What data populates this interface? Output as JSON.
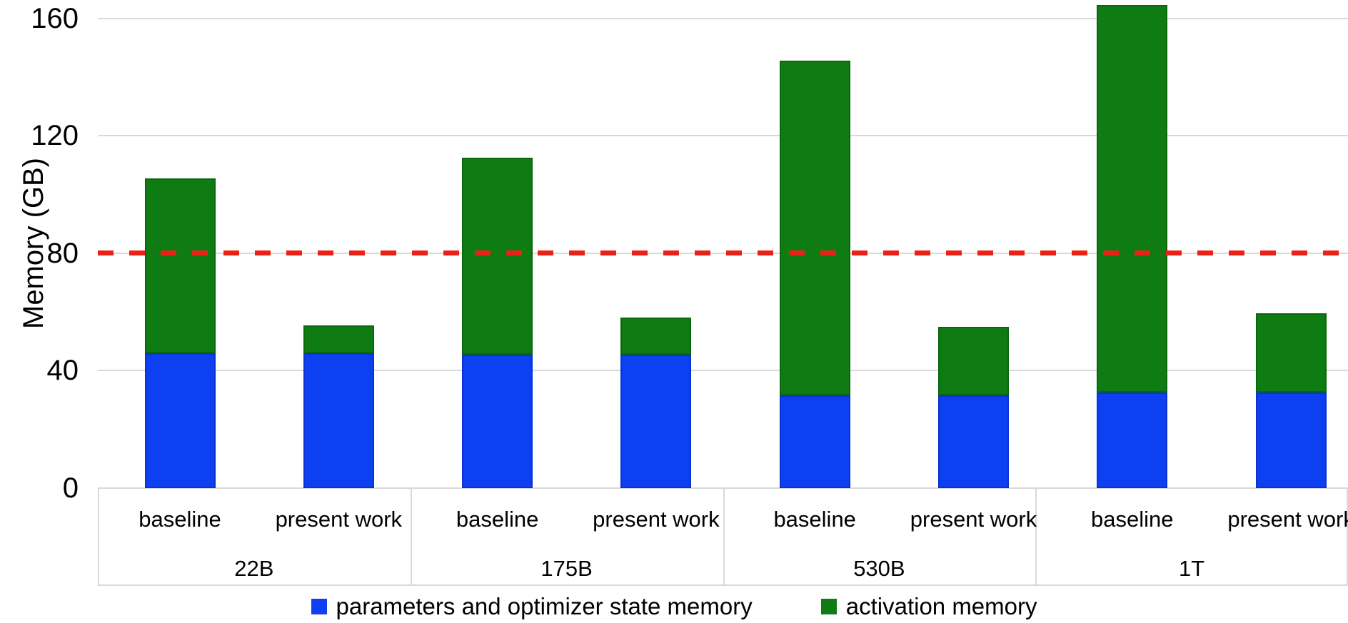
{
  "chart_data": {
    "type": "bar",
    "stacked": true,
    "ylabel": "Memory (GB)",
    "xlabel": "",
    "y_ticks": [
      0,
      40,
      80,
      120,
      160
    ],
    "ylim": [
      0,
      166
    ],
    "grid": true,
    "legend_position": "bottom",
    "groups": [
      "22B",
      "175B",
      "530B",
      "1T"
    ],
    "bar_labels": [
      "baseline",
      "present work"
    ],
    "categories": [
      "22B baseline",
      "22B present work",
      "175B baseline",
      "175B present work",
      "530B baseline",
      "530B present work",
      "1T baseline",
      "1T present work"
    ],
    "series": [
      {
        "name": "parameters and optimizer state memory",
        "color": "#0d40f0",
        "values": [
          46,
          46,
          45.5,
          45.5,
          31.5,
          31.5,
          32.5,
          32.5
        ]
      },
      {
        "name": "activation memory",
        "color": "#0e7c12",
        "values": [
          59.5,
          9.5,
          67,
          12.5,
          114,
          23.5,
          132,
          27
        ]
      }
    ],
    "totals": [
      105.5,
      55.5,
      112.5,
      58,
      145.5,
      55,
      164.5,
      59.5
    ],
    "reference_line": {
      "value": 80,
      "color": "#ea2115",
      "style": "dashed"
    },
    "colors": {
      "gridline": "#d9d9d9",
      "text": "#000000",
      "background": "#ffffff"
    }
  }
}
